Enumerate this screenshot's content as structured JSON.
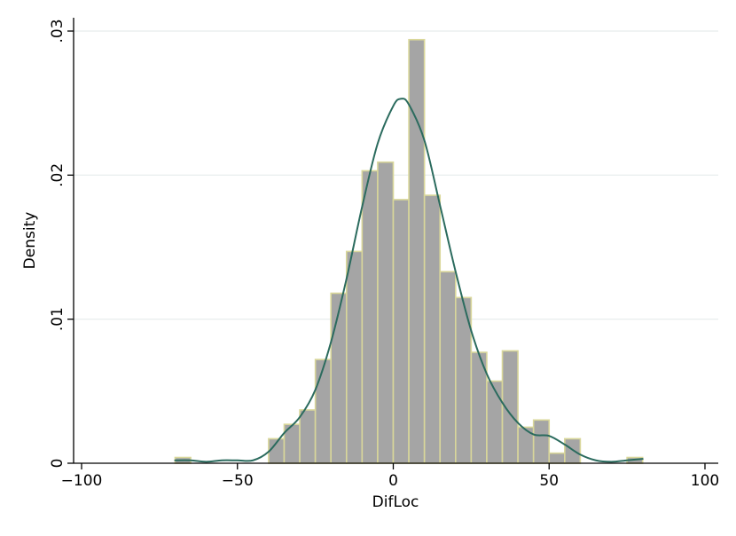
{
  "chart_data": {
    "type": "bar",
    "subtype": "histogram-with-kernel-density",
    "xlabel": "DifLoc",
    "ylabel": "Density",
    "xlim": [
      -100,
      100
    ],
    "ylim": [
      0,
      0.03
    ],
    "x_ticks": [
      -100,
      -50,
      0,
      50,
      100
    ],
    "x_tick_labels": [
      "−100",
      "−50",
      "0",
      "50",
      "100"
    ],
    "y_ticks": [
      0,
      0.01,
      0.02,
      0.03
    ],
    "y_tick_labels": [
      "0",
      ".01",
      ".02",
      ".03"
    ],
    "grid": "horizontal",
    "legend": "none",
    "bin_width": 5,
    "bins": [
      {
        "x0": -70,
        "x1": -65,
        "density": 0.0004
      },
      {
        "x0": -65,
        "x1": -60,
        "density": 0.0
      },
      {
        "x0": -60,
        "x1": -55,
        "density": 0.0
      },
      {
        "x0": -55,
        "x1": -50,
        "density": 0.0
      },
      {
        "x0": -50,
        "x1": -45,
        "density": 0.0
      },
      {
        "x0": -45,
        "x1": -40,
        "density": 0.0
      },
      {
        "x0": -40,
        "x1": -35,
        "density": 0.0017
      },
      {
        "x0": -35,
        "x1": -30,
        "density": 0.0027
      },
      {
        "x0": -30,
        "x1": -25,
        "density": 0.0037
      },
      {
        "x0": -25,
        "x1": -20,
        "density": 0.0072
      },
      {
        "x0": -20,
        "x1": -15,
        "density": 0.0118
      },
      {
        "x0": -15,
        "x1": -10,
        "density": 0.0147
      },
      {
        "x0": -10,
        "x1": -5,
        "density": 0.0203
      },
      {
        "x0": -5,
        "x1": 0,
        "density": 0.0209
      },
      {
        "x0": 0,
        "x1": 5,
        "density": 0.0183
      },
      {
        "x0": 5,
        "x1": 10,
        "density": 0.0294
      },
      {
        "x0": 10,
        "x1": 15,
        "density": 0.0186
      },
      {
        "x0": 15,
        "x1": 20,
        "density": 0.0133
      },
      {
        "x0": 20,
        "x1": 25,
        "density": 0.0115
      },
      {
        "x0": 25,
        "x1": 30,
        "density": 0.0077
      },
      {
        "x0": 30,
        "x1": 35,
        "density": 0.0057
      },
      {
        "x0": 35,
        "x1": 40,
        "density": 0.0078
      },
      {
        "x0": 40,
        "x1": 45,
        "density": 0.0025
      },
      {
        "x0": 45,
        "x1": 50,
        "density": 0.003
      },
      {
        "x0": 50,
        "x1": 55,
        "density": 0.0007
      },
      {
        "x0": 55,
        "x1": 60,
        "density": 0.0017
      },
      {
        "x0": 60,
        "x1": 65,
        "density": 0.0
      },
      {
        "x0": 65,
        "x1": 70,
        "density": 0.0
      },
      {
        "x0": 70,
        "x1": 75,
        "density": 0.0
      },
      {
        "x0": 75,
        "x1": 80,
        "density": 0.0004
      }
    ],
    "density_curve": {
      "x": [
        -70,
        -65,
        -60,
        -55,
        -50,
        -45,
        -40,
        -35,
        -30,
        -25,
        -20,
        -15,
        -10,
        -5,
        0,
        2.5,
        5,
        10,
        15,
        20,
        25,
        30,
        35,
        40,
        45,
        50,
        55,
        60,
        65,
        70,
        75,
        80
      ],
      "y": [
        0.0002,
        0.0002,
        0.0001,
        0.0002,
        0.0002,
        0.0002,
        0.0008,
        0.0021,
        0.0032,
        0.0051,
        0.0084,
        0.0128,
        0.0178,
        0.0222,
        0.0248,
        0.0253,
        0.0249,
        0.0224,
        0.0179,
        0.0133,
        0.0092,
        0.0062,
        0.0042,
        0.0028,
        0.002,
        0.0019,
        0.0013,
        0.0006,
        0.0002,
        0.0001,
        0.0002,
        0.0003
      ]
    },
    "colors": {
      "bar_fill": "#a5a5a5",
      "bar_edge": "#d9d79a",
      "density_line": "#2b6b5e",
      "grid": "#e6ecec",
      "axis": "#000000"
    }
  }
}
